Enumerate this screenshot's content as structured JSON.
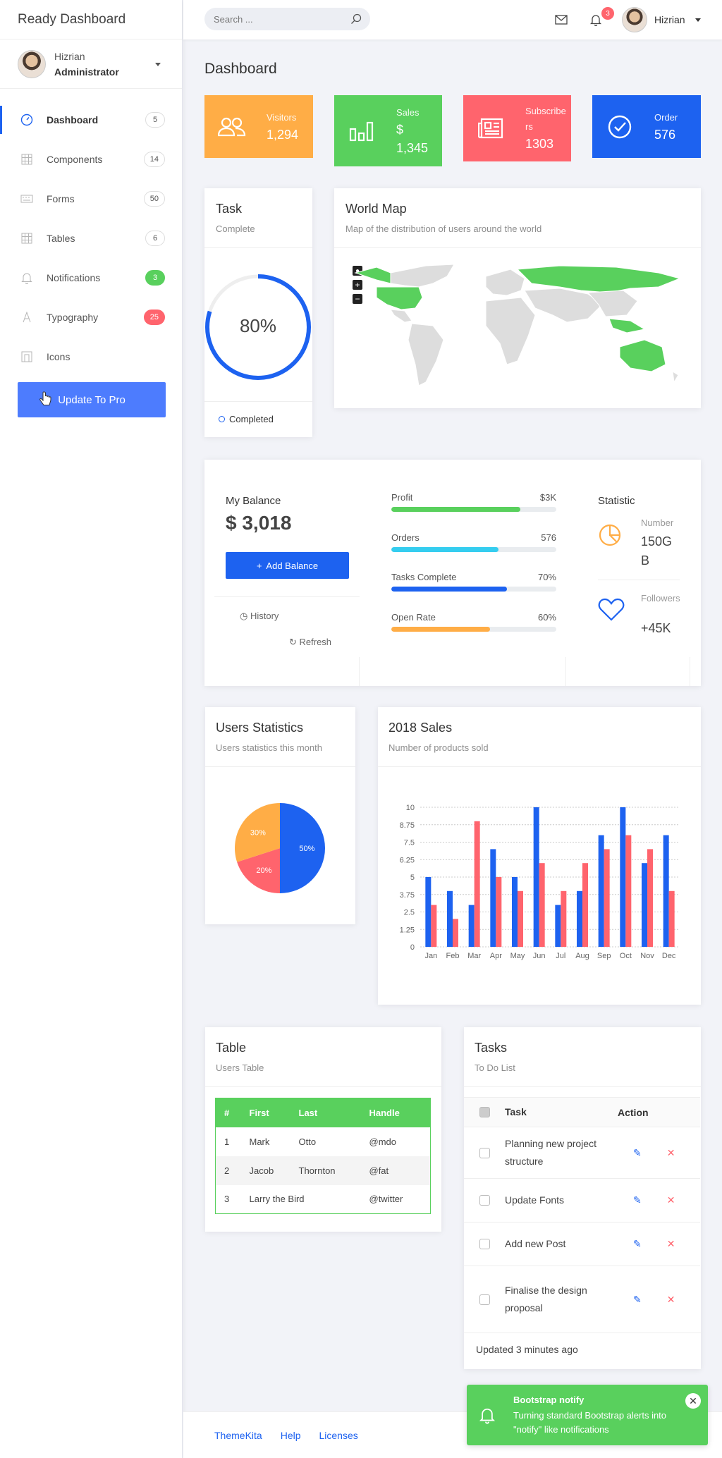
{
  "brand": "Ready Dashboard",
  "user": {
    "name": "Hizrian",
    "role": "Administrator"
  },
  "nav": [
    {
      "label": "Dashboard",
      "badge": "5",
      "icon": "dashboard-icon"
    },
    {
      "label": "Components",
      "badge": "14",
      "icon": "grid-icon"
    },
    {
      "label": "Forms",
      "badge": "50",
      "icon": "keyboard-icon"
    },
    {
      "label": "Tables",
      "badge": "6",
      "icon": "table-icon"
    },
    {
      "label": "Notifications",
      "badge": "3",
      "icon": "bell-icon"
    },
    {
      "label": "Typography",
      "badge": "25",
      "icon": "font-icon"
    },
    {
      "label": "Icons",
      "badge": "",
      "icon": "icons-icon"
    }
  ],
  "update_btn": "Update To Pro",
  "header": {
    "search_placeholder": "Search ...",
    "notif_count": "3",
    "user_name": "Hizrian"
  },
  "page_title": "Dashboard",
  "stats": [
    {
      "label": "Visitors",
      "value": "1,294",
      "color": "#ffad46",
      "icon": "users-icon"
    },
    {
      "label": "Sales",
      "value": "$ 1,345",
      "color": "#59d05d",
      "icon": "bar-chart-icon"
    },
    {
      "label": "Subscribers",
      "value": "1303",
      "color": "#ff646d",
      "icon": "newspaper-icon"
    },
    {
      "label": "Order",
      "value": "576",
      "color": "#1d62f0",
      "icon": "check-circle-icon"
    }
  ],
  "task_card": {
    "title": "Task",
    "subtitle": "Complete",
    "percent": "80%",
    "progress": 0.8,
    "legend": "Completed"
  },
  "map_card": {
    "title": "World Map",
    "subtitle": "Map of the distribution of users around the world"
  },
  "balance": {
    "label": "My Balance",
    "value": "$ 3,018",
    "add_btn": "Add Balance",
    "history": "History",
    "refresh": "Refresh",
    "bars": [
      {
        "label": "Profit",
        "value": "$3K",
        "fill": 0.78,
        "color": "#59d05d"
      },
      {
        "label": "Orders",
        "value": "576",
        "fill": 0.65,
        "color": "#35cd3a"
      },
      {
        "label": "Tasks Complete",
        "value": "70%",
        "fill": 0.7,
        "color": "#1d62f0"
      },
      {
        "label": "Open Rate",
        "value": "60%",
        "fill": 0.6,
        "color": "#ffad46"
      }
    ],
    "statistic": {
      "title": "Statistic",
      "number_label": "Number",
      "number_value": "150GB",
      "followers_label": "Followers",
      "followers_value": "+45K"
    }
  },
  "users_stats": {
    "title": "Users Statistics",
    "subtitle": "Users statistics this month"
  },
  "sales": {
    "title": "2018 Sales",
    "subtitle": "Number of products sold"
  },
  "chart_data": [
    {
      "type": "pie",
      "labels": [
        "50%",
        "20%",
        "30%"
      ],
      "values": [
        50,
        20,
        30
      ],
      "colors": [
        "#1d62f0",
        "#ff646d",
        "#ffad46"
      ]
    },
    {
      "type": "bar",
      "categories": [
        "Jan",
        "Feb",
        "Mar",
        "Apr",
        "May",
        "Jun",
        "Jul",
        "Aug",
        "Sep",
        "Oct",
        "Nov",
        "Dec"
      ],
      "series": [
        {
          "values": [
            5,
            4,
            3,
            7,
            5,
            10,
            3,
            4,
            8,
            10,
            6,
            8
          ],
          "color": "#1d62f0"
        },
        {
          "values": [
            3,
            2,
            9,
            5,
            4,
            6,
            4,
            6,
            7,
            8,
            7,
            4
          ],
          "color": "#ff646d"
        }
      ],
      "yticks": [
        "0",
        "1.25",
        "2.5",
        "3.75",
        "5",
        "6.25",
        "7.5",
        "8.75",
        "10"
      ],
      "ylim": [
        0,
        10
      ],
      "grid": true
    }
  ],
  "table": {
    "title": "Table",
    "subtitle": "Users Table",
    "headers": [
      "#",
      "First",
      "Last",
      "Handle"
    ],
    "rows": [
      [
        "1",
        "Mark",
        "Otto",
        "@mdo"
      ],
      [
        "2",
        "Jacob",
        "Thornton",
        "@fat"
      ],
      [
        "3",
        "Larry the Bird",
        "",
        "@twitter"
      ]
    ]
  },
  "tasks": {
    "title": "Tasks",
    "subtitle": "To Do List",
    "col_task": "Task",
    "col_action": "Action",
    "items": [
      "Planning new project structure",
      "Update Fonts",
      "Add new Post",
      "Finalise the design proposal"
    ],
    "updated": "Updated 3 minutes ago"
  },
  "footer": [
    "ThemeKita",
    "Help",
    "Licenses"
  ],
  "toast": {
    "title": "Bootstrap notify",
    "message": "Turning standard Bootstrap alerts into \"notify\" like notifications"
  }
}
